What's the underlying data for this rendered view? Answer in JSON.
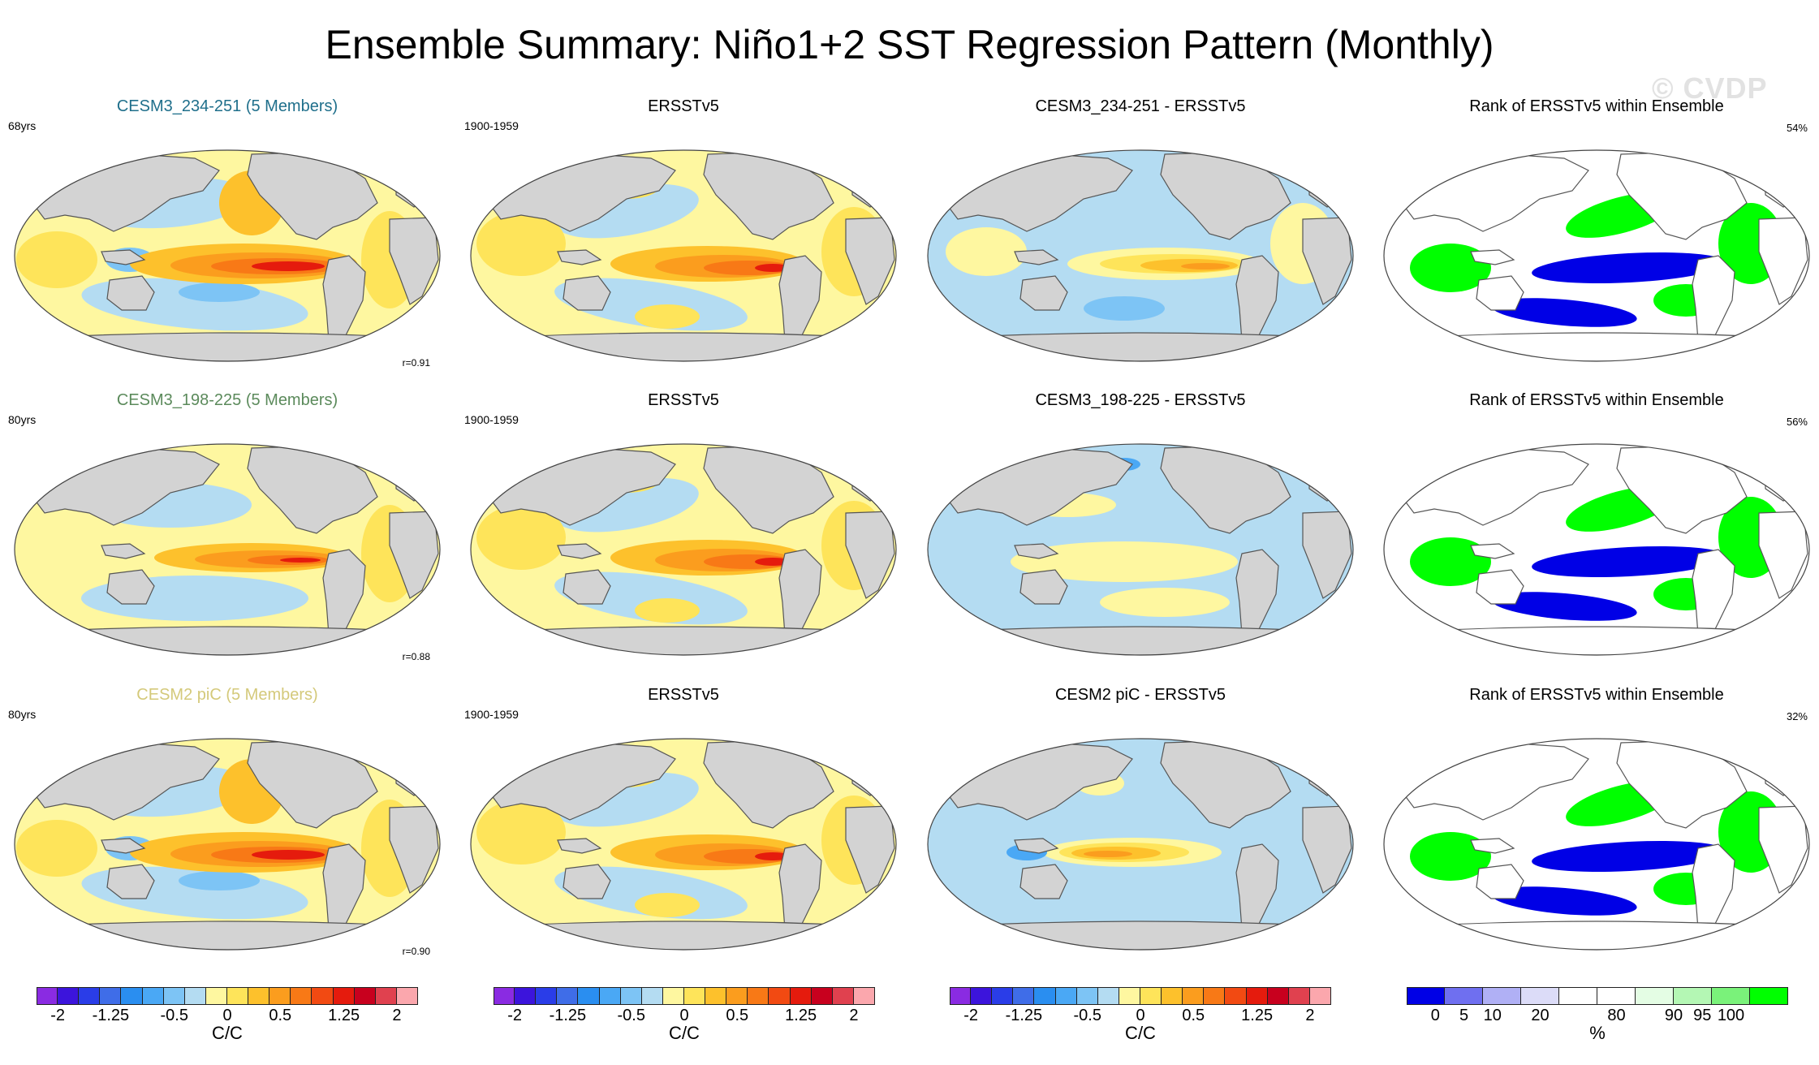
{
  "title": "Ensemble Summary: Niño1+2 SST Regression Pattern (Monthly)",
  "watermark": "© CVDP",
  "colors": {
    "land": "#d3d3d3",
    "coast": "#555555",
    "title_row1": "#1f6f8b",
    "title_row2": "#5b8a5b",
    "title_row3": "#d4c97a",
    "rank_low": "#0000e6",
    "rank_high": "#00ff00"
  },
  "chart_data": [
    {
      "row": 1,
      "col": 1,
      "type": "heatmap",
      "title": "CESM3_234-251 (5 Members)",
      "left_label": "68yrs",
      "right_label": "",
      "corr": "r=0.91",
      "pattern": "model-strong"
    },
    {
      "row": 1,
      "col": 2,
      "type": "heatmap",
      "title": "ERSSTv5",
      "left_label": "1900-1959",
      "right_label": "",
      "corr": "",
      "pattern": "obs"
    },
    {
      "row": 1,
      "col": 3,
      "type": "heatmap",
      "title": "CESM3_234-251 - ERSSTv5",
      "left_label": "",
      "right_label": "",
      "corr": "",
      "pattern": "diff"
    },
    {
      "row": 1,
      "col": 4,
      "type": "heatmap",
      "title": "Rank of ERSSTv5 within Ensemble",
      "left_label": "",
      "right_label": "54%",
      "corr": "",
      "pattern": "rank"
    },
    {
      "row": 2,
      "col": 1,
      "type": "heatmap",
      "title": "CESM3_198-225 (5 Members)",
      "left_label": "80yrs",
      "right_label": "",
      "corr": "r=0.88",
      "pattern": "model-mid"
    },
    {
      "row": 2,
      "col": 2,
      "type": "heatmap",
      "title": "ERSSTv5",
      "left_label": "1900-1959",
      "right_label": "",
      "corr": "",
      "pattern": "obs"
    },
    {
      "row": 2,
      "col": 3,
      "type": "heatmap",
      "title": "CESM3_198-225 - ERSSTv5",
      "left_label": "",
      "right_label": "",
      "corr": "",
      "pattern": "diff-weak"
    },
    {
      "row": 2,
      "col": 4,
      "type": "heatmap",
      "title": "Rank of ERSSTv5 within Ensemble",
      "left_label": "",
      "right_label": "56%",
      "corr": "",
      "pattern": "rank"
    },
    {
      "row": 3,
      "col": 1,
      "type": "heatmap",
      "title": "CESM2 piC (5 Members)",
      "left_label": "80yrs",
      "right_label": "",
      "corr": "r=0.90",
      "pattern": "model-strong"
    },
    {
      "row": 3,
      "col": 2,
      "type": "heatmap",
      "title": "ERSSTv5",
      "left_label": "1900-1959",
      "right_label": "",
      "corr": "",
      "pattern": "obs"
    },
    {
      "row": 3,
      "col": 3,
      "type": "heatmap",
      "title": "CESM2 piC - ERSSTv5",
      "left_label": "",
      "right_label": "",
      "corr": "",
      "pattern": "diff-west"
    },
    {
      "row": 3,
      "col": 4,
      "type": "heatmap",
      "title": "Rank of ERSSTv5 within Ensemble",
      "left_label": "",
      "right_label": "32%",
      "corr": "",
      "pattern": "rank"
    }
  ],
  "colorbars": [
    {
      "unit": "C/C",
      "colors": [
        "#8a2be2",
        "#3c14dc",
        "#2a3de8",
        "#3f6de8",
        "#2a8ef0",
        "#4aa8f5",
        "#7dc4f5",
        "#b4dcf2",
        "#fef7a0",
        "#fee45a",
        "#fdc12c",
        "#fb9d1e",
        "#f87916",
        "#f24a12",
        "#e51b0d",
        "#c8001e",
        "#e0414f",
        "#fba7ad"
      ],
      "ticks": [
        "-2",
        "-1.25",
        "-0.5",
        "0",
        "0.5",
        "1.25",
        "2"
      ]
    },
    {
      "unit": "C/C",
      "colors": [
        "#8a2be2",
        "#3c14dc",
        "#2a3de8",
        "#3f6de8",
        "#2a8ef0",
        "#4aa8f5",
        "#7dc4f5",
        "#b4dcf2",
        "#fef7a0",
        "#fee45a",
        "#fdc12c",
        "#fb9d1e",
        "#f87916",
        "#f24a12",
        "#e51b0d",
        "#c8001e",
        "#e0414f",
        "#fba7ad"
      ],
      "ticks": [
        "-2",
        "-1.25",
        "-0.5",
        "0",
        "0.5",
        "1.25",
        "2"
      ]
    },
    {
      "unit": "C/C",
      "colors": [
        "#8a2be2",
        "#3c14dc",
        "#2a3de8",
        "#3f6de8",
        "#2a8ef0",
        "#4aa8f5",
        "#7dc4f5",
        "#b4dcf2",
        "#fef7a0",
        "#fee45a",
        "#fdc12c",
        "#fb9d1e",
        "#f87916",
        "#f24a12",
        "#e51b0d",
        "#c8001e",
        "#e0414f",
        "#fba7ad"
      ],
      "ticks": [
        "-2",
        "-1.25",
        "-0.5",
        "0",
        "0.5",
        "1.25",
        "2"
      ]
    },
    {
      "unit": "%",
      "colors": [
        "#0000e6",
        "#6f6ff0",
        "#b0b0f5",
        "#dcdcf8",
        "#ffffff",
        "#ffffff",
        "#e4fde4",
        "#b4f7b4",
        "#7af27a",
        "#00ff00"
      ],
      "ticks": [
        "0",
        "5",
        "10",
        "20",
        "80",
        "90",
        "95",
        "100"
      ]
    }
  ]
}
